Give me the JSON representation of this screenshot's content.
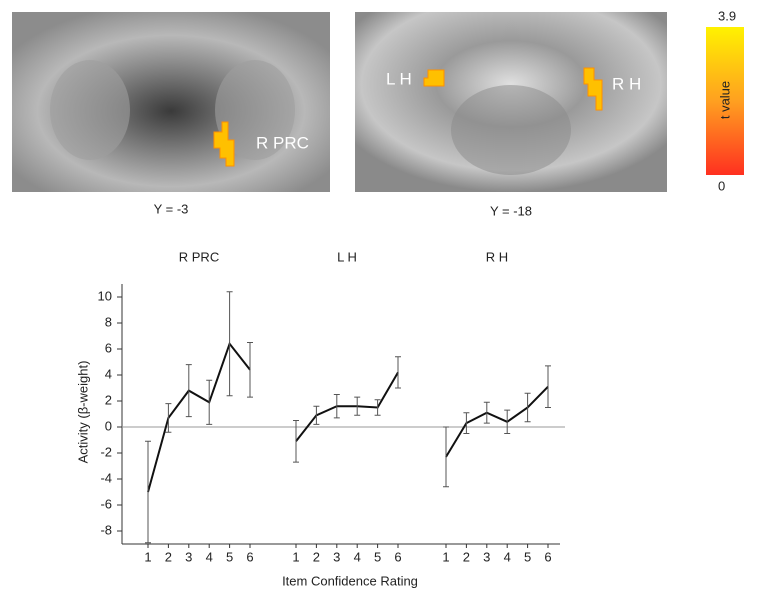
{
  "images": [
    {
      "labels": [
        "R PRC"
      ],
      "caption": "Y = -3"
    },
    {
      "labels": [
        "L H",
        "R H"
      ],
      "caption": "Y = -18"
    }
  ],
  "colorbar": {
    "title": "t value",
    "range": [
      0,
      3.9
    ]
  },
  "chart_data": {
    "type": "line",
    "ylabel": "Activity (β-weight)",
    "xlabel": "Item Confidence Rating",
    "ylim": [
      -9,
      11
    ],
    "yticks": [
      -8,
      -6,
      -4,
      -2,
      0,
      2,
      4,
      6,
      8,
      10
    ],
    "xlim": [
      1,
      6
    ],
    "color": "#111111",
    "panels": [
      {
        "title": "R PRC",
        "x": [
          1,
          2,
          3,
          4,
          5,
          6
        ],
        "values": [
          -5,
          0.7,
          2.8,
          1.9,
          6.4,
          4.4
        ],
        "errors": [
          3.9,
          1.1,
          2,
          1.7,
          4,
          2.1
        ]
      },
      {
        "title": "L H",
        "x": [
          1,
          2,
          3,
          4,
          5,
          6
        ],
        "values": [
          -1.1,
          0.9,
          1.6,
          1.6,
          1.5,
          4.2
        ],
        "errors": [
          1.6,
          0.7,
          0.9,
          0.7,
          0.6,
          1.2
        ]
      },
      {
        "title": "R H",
        "x": [
          1,
          2,
          3,
          4,
          5,
          6
        ],
        "values": [
          -2.3,
          0.3,
          1.1,
          0.4,
          1.5,
          3.1
        ],
        "errors": [
          2.3,
          0.8,
          0.8,
          0.9,
          1.1,
          1.6
        ]
      }
    ]
  }
}
